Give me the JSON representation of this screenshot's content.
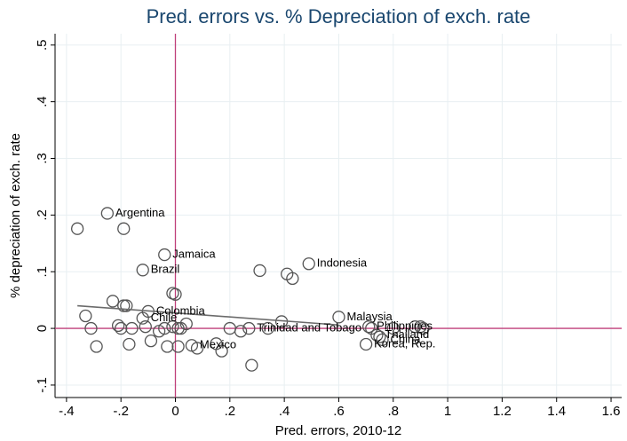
{
  "chart_data": {
    "type": "scatter",
    "title": "Pred. errors vs. % Depreciation of exch. rate",
    "x_label": "Pred. errors, 2010-12",
    "y_label": "% depreciation of exch. rate",
    "xlim": [
      -0.442,
      1.639
    ],
    "ylim": [
      -0.122,
      0.52
    ],
    "xticks": [
      {
        "value": -0.4,
        "label": "-.4"
      },
      {
        "value": -0.2,
        "label": "-.2"
      },
      0,
      {
        "value": 0.2,
        "label": ".2"
      },
      {
        "value": 0.4,
        "label": ".4"
      },
      {
        "value": 0.6,
        "label": ".6"
      },
      {
        "value": 0.8,
        "label": ".8"
      },
      1,
      {
        "value": 1.2,
        "label": "1.2"
      },
      {
        "value": 1.4,
        "label": "1.4"
      },
      {
        "value": 1.6,
        "label": "1.6"
      }
    ],
    "yticks": [
      {
        "value": -0.1,
        "label": "-.1"
      },
      0,
      {
        "value": 0.1,
        "label": ".1"
      },
      {
        "value": 0.2,
        "label": ".2"
      },
      {
        "value": 0.3,
        "label": ".3"
      },
      {
        "value": 0.4,
        "label": ".4"
      },
      {
        "value": 0.5,
        "label": ".5"
      }
    ],
    "grid": true,
    "marker_color": "#555555",
    "label_color": "#9b3a3a",
    "reference_color": "#c0407a",
    "fit_color": "#6b6b6b",
    "reference_lines": {
      "x": 0,
      "y": 0
    },
    "fit": {
      "x": [
        -0.36,
        0.6
      ],
      "y": [
        0.04,
        0.006
      ]
    },
    "x": [
      -0.25,
      -0.36,
      -0.19,
      -0.04,
      -0.12,
      0.31,
      0.49,
      0.41,
      0.43,
      -0.01,
      0.0,
      -0.23,
      -0.19,
      -0.18,
      -0.1,
      -0.12,
      -0.33,
      -0.31,
      -0.29,
      -0.21,
      -0.2,
      -0.16,
      -0.17,
      -0.11,
      -0.09,
      -0.06,
      -0.04,
      -0.03,
      -0.01,
      0.01,
      0.02,
      0.04,
      0.01,
      0.06,
      0.08,
      0.15,
      0.17,
      0.2,
      0.24,
      0.28,
      0.27,
      0.34,
      0.39,
      0.6,
      0.71,
      0.72,
      0.74,
      0.75,
      0.76,
      0.7,
      0.8,
      0.88,
      0.9,
      0.91
    ],
    "y": [
      0.203,
      0.176,
      0.176,
      0.13,
      0.103,
      0.102,
      0.114,
      0.096,
      0.088,
      0.062,
      0.06,
      0.048,
      0.04,
      0.04,
      0.03,
      0.018,
      0.022,
      0.0,
      -0.032,
      0.005,
      0.0,
      0.0,
      -0.028,
      0.003,
      -0.022,
      -0.005,
      0.0,
      -0.032,
      0.003,
      0.0,
      0.0,
      0.008,
      -0.032,
      -0.03,
      -0.035,
      -0.027,
      -0.04,
      0.0,
      -0.005,
      -0.065,
      0.0,
      0.0,
      0.012,
      0.02,
      0.003,
      0.0,
      -0.012,
      -0.015,
      -0.02,
      -0.028,
      0.0,
      0.003,
      0.003,
      0.0
    ],
    "labels": [
      "Argentina",
      null,
      null,
      "Jamaica",
      "Brazil",
      null,
      "Indonesia",
      null,
      null,
      null,
      null,
      null,
      null,
      null,
      "Colombia",
      "Chile",
      null,
      null,
      null,
      null,
      null,
      null,
      null,
      null,
      null,
      null,
      null,
      null,
      null,
      null,
      null,
      null,
      null,
      "Mexico",
      null,
      null,
      null,
      null,
      null,
      null,
      "Trinidad and Tobago",
      null,
      null,
      "Malaysia",
      "Philippines",
      null,
      "Thailand",
      null,
      "China",
      "Korea, Rep.",
      null,
      null,
      null,
      null
    ]
  }
}
